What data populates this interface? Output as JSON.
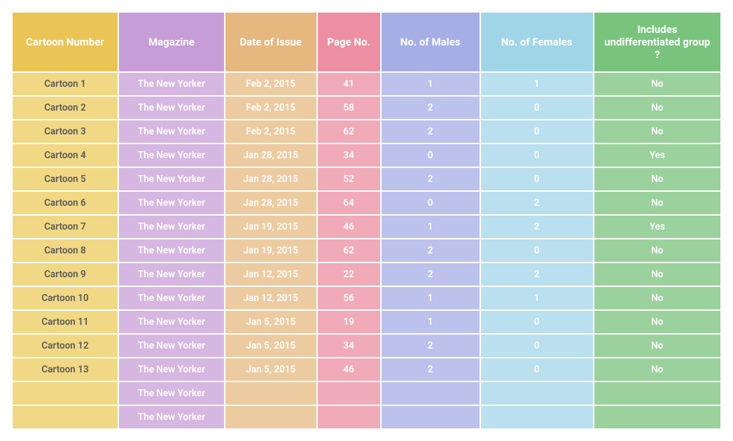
{
  "table": {
    "columns": [
      {
        "label": "Cartoon Number",
        "header_bg": "#eac454",
        "cell_bg": "#f1d884",
        "cell_text": "#5a5a5a"
      },
      {
        "label": "Magazine",
        "header_bg": "#c79dd7",
        "cell_bg": "#d6b7e1",
        "cell_text": "#ffffff"
      },
      {
        "label": "Date of Issue",
        "header_bg": "#e6b77e",
        "cell_bg": "#edcba1",
        "cell_text": "#ffffff"
      },
      {
        "label": "Page No.",
        "header_bg": "#ec8fa3",
        "cell_bg": "#f1aab8",
        "cell_text": "#ffffff"
      },
      {
        "label": "No. of Males",
        "header_bg": "#a6aee6",
        "cell_bg": "#bcc2ec",
        "cell_text": "#ffffff"
      },
      {
        "label": "No. of Females",
        "header_bg": "#a0d5e8",
        "cell_bg": "#badfee",
        "cell_text": "#ffffff"
      },
      {
        "label": "Includes undifferentiated group ?",
        "header_bg": "#79c47c",
        "cell_bg": "#9bd19d",
        "cell_text": "#ffffff"
      }
    ],
    "rows": [
      [
        "Cartoon 1",
        "The New Yorker",
        "Feb 2, 2015",
        "41",
        "1",
        "1",
        "No"
      ],
      [
        "Cartoon 2",
        "The New Yorker",
        "Feb 2, 2015",
        "58",
        "2",
        "0",
        "No"
      ],
      [
        "Cartoon 3",
        "The New Yorker",
        "Feb 2, 2015",
        "62",
        "2",
        "0",
        "No"
      ],
      [
        "Cartoon 4",
        "The New Yorker",
        "Jan 28, 2015",
        "34",
        "0",
        "0",
        "Yes"
      ],
      [
        "Cartoon 5",
        "The New Yorker",
        "Jan 28, 2015",
        "52",
        "2",
        "0",
        "No"
      ],
      [
        "Cartoon 6",
        "The New Yorker",
        "Jan 28, 2015",
        "64",
        "0",
        "2",
        "No"
      ],
      [
        "Cartoon 7",
        "The New Yorker",
        "Jan 19, 2015",
        "46",
        "1",
        "2",
        "Yes"
      ],
      [
        "Cartoon 8",
        "The New Yorker",
        "Jan 19, 2015",
        "62",
        "2",
        "0",
        "No"
      ],
      [
        "Cartoon 9",
        "The New Yorker",
        "Jan 12, 2015",
        "22",
        "2",
        "2",
        "No"
      ],
      [
        "Cartoon 10",
        "The New Yorker",
        "Jan 12, 2015",
        "56",
        "1",
        "1",
        "No"
      ],
      [
        "Cartoon 11",
        "The New Yorker",
        "Jan 5, 2015",
        "19",
        "1",
        "0",
        "No"
      ],
      [
        "Cartoon 12",
        "The New Yorker",
        "Jan 5, 2015",
        "34",
        "2",
        "0",
        "No"
      ],
      [
        "Cartoon 13",
        "The New Yorker",
        "Jan 5, 2015",
        "46",
        "2",
        "0",
        "No"
      ],
      [
        "",
        "The New Yorker",
        "",
        "",
        "",
        "",
        ""
      ],
      [
        "",
        "The New Yorker",
        "",
        "",
        "",
        "",
        ""
      ]
    ]
  }
}
